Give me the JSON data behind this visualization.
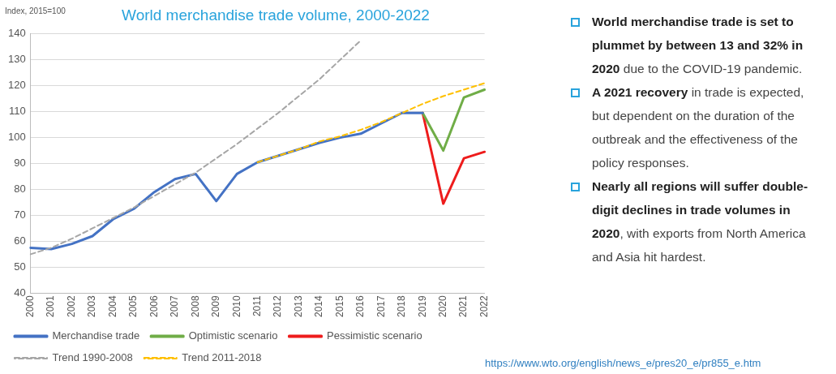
{
  "chart_data": {
    "type": "line",
    "title": "World merchandise trade volume, 2000-2022",
    "ylabel": "Index, 2015=100",
    "categories": [
      "2000",
      "2001",
      "2002",
      "2003",
      "2004",
      "2005",
      "2006",
      "2007",
      "2008",
      "2009",
      "2010",
      "2011",
      "2012",
      "2013",
      "2014",
      "2015",
      "2016",
      "2017",
      "2018",
      "2019",
      "2020",
      "2021",
      "2022"
    ],
    "series": [
      {
        "name": "Merchandise trade",
        "color": "#4472c4",
        "values": [
          57.5,
          57,
          59,
          62,
          68.5,
          72.5,
          79,
          84,
          86,
          75.5,
          86,
          90.5,
          93,
          95.5,
          98,
          100,
          101.5,
          105.5,
          109.5,
          109.5,
          null,
          null,
          null
        ]
      },
      {
        "name": "Optimistic scenario",
        "color": "#70ad47",
        "values": [
          null,
          null,
          null,
          null,
          null,
          null,
          null,
          null,
          null,
          null,
          null,
          null,
          null,
          null,
          null,
          null,
          null,
          null,
          null,
          109.5,
          95,
          115.5,
          118.5
        ]
      },
      {
        "name": "Pessimistic scenario",
        "color": "#ee1c1c",
        "values": [
          null,
          null,
          null,
          null,
          null,
          null,
          null,
          null,
          null,
          null,
          null,
          null,
          null,
          null,
          null,
          null,
          null,
          null,
          null,
          109.5,
          74.5,
          92,
          94.5
        ]
      },
      {
        "name": "Trend 1990-2008",
        "color": "#a6a6a6",
        "line_style": "dashed",
        "values": [
          55,
          57.5,
          61,
          65,
          69,
          73,
          77.5,
          82,
          86.5,
          92,
          97.5,
          103.5,
          109.5,
          116,
          122.5,
          130,
          137.5,
          null,
          null,
          null,
          null,
          null,
          null
        ]
      },
      {
        "name": "Trend 2011-2018",
        "color": "#ffc000",
        "line_style": "dashed",
        "values": [
          null,
          null,
          null,
          null,
          null,
          null,
          null,
          null,
          null,
          null,
          null,
          90.5,
          93,
          95.5,
          98.5,
          100.5,
          103,
          106,
          109.5,
          113,
          116,
          118.5,
          121
        ]
      }
    ],
    "ylim": [
      40,
      140
    ],
    "yticks": [
      40,
      50,
      60,
      70,
      80,
      90,
      100,
      110,
      120,
      130,
      140
    ],
    "grid": "y",
    "legend": "bottom",
    "marker": "none",
    "line_style": "solid",
    "annotations": [
      "World merchandise trade is set to plummet by between 13 and 32% in 2020",
      " due to the COVID-19 pandemic.",
      "A 2021 recovery",
      " in trade is expected, but dependent on the duration of the outbreak and the effectiveness of the policy responses.",
      "Nearly all regions will suffer double-digit declines in trade volumes in 2020",
      ", with exports from North America and Asia hit hardest.",
      "https://www.wto.org/english/news_e/pres20_e/pr855_e.htm"
    ]
  }
}
